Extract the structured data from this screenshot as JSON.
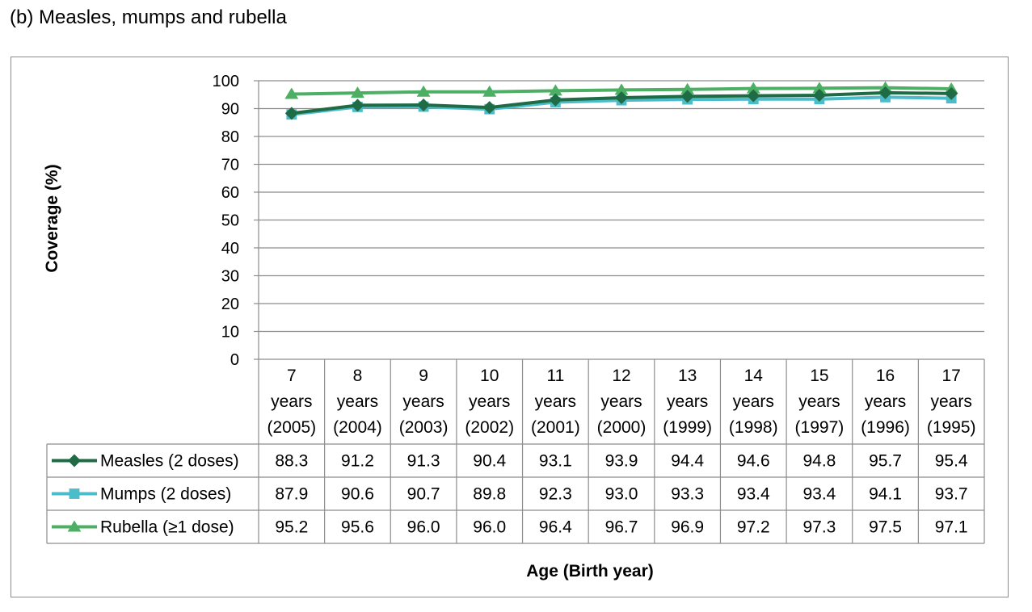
{
  "figure_title": "(b)  Measles, mumps and rubella",
  "chart_data": {
    "type": "line",
    "ylabel": "Coverage (%)",
    "xlabel": "Age (Birth year)",
    "ylim": [
      0,
      100
    ],
    "yticks": [
      0,
      10,
      20,
      30,
      40,
      50,
      60,
      70,
      80,
      90,
      100
    ],
    "yticks_text": [
      "0",
      "10",
      "20",
      "30",
      "40",
      "50",
      "60",
      "70",
      "80",
      "90",
      "100"
    ],
    "grid": true,
    "legend_placement": "data-table",
    "categories": [
      {
        "age": "7",
        "unit": "years",
        "year": "(2005)"
      },
      {
        "age": "8",
        "unit": "years",
        "year": "(2004)"
      },
      {
        "age": "9",
        "unit": "years",
        "year": "(2003)"
      },
      {
        "age": "10",
        "unit": "years",
        "year": "(2002)"
      },
      {
        "age": "11",
        "unit": "years",
        "year": "(2001)"
      },
      {
        "age": "12",
        "unit": "years",
        "year": "(2000)"
      },
      {
        "age": "13",
        "unit": "years",
        "year": "(1999)"
      },
      {
        "age": "14",
        "unit": "years",
        "year": "(1998)"
      },
      {
        "age": "15",
        "unit": "years",
        "year": "(1997)"
      },
      {
        "age": "16",
        "unit": "years",
        "year": "(1996)"
      },
      {
        "age": "17",
        "unit": "years",
        "year": "(1995)"
      }
    ],
    "series": [
      {
        "name": "Measles (2 doses)",
        "color": "#1e6b45",
        "marker": "diamond",
        "values": [
          88.3,
          91.2,
          91.3,
          90.4,
          93.1,
          93.9,
          94.4,
          94.6,
          94.8,
          95.7,
          95.4
        ],
        "labels": [
          "88.3",
          "91.2",
          "91.3",
          "90.4",
          "93.1",
          "93.9",
          "94.4",
          "94.6",
          "94.8",
          "95.7",
          "95.4"
        ]
      },
      {
        "name": "Mumps (2 doses)",
        "color": "#4bbcc9",
        "marker": "square",
        "values": [
          87.9,
          90.6,
          90.7,
          89.8,
          92.3,
          93.0,
          93.3,
          93.4,
          93.4,
          94.1,
          93.7
        ],
        "labels": [
          "87.9",
          "90.6",
          "90.7",
          "89.8",
          "92.3",
          "93.0",
          "93.3",
          "93.4",
          "93.4",
          "94.1",
          "93.7"
        ]
      },
      {
        "name": "Rubella (≥1 dose)",
        "color": "#4caf63",
        "marker": "triangle",
        "values": [
          95.2,
          95.6,
          96.0,
          96.0,
          96.4,
          96.7,
          96.9,
          97.2,
          97.3,
          97.5,
          97.1
        ],
        "labels": [
          "95.2",
          "95.6",
          "96.0",
          "96.0",
          "96.4",
          "96.7",
          "96.9",
          "97.2",
          "97.3",
          "97.5",
          "97.1"
        ]
      }
    ]
  }
}
